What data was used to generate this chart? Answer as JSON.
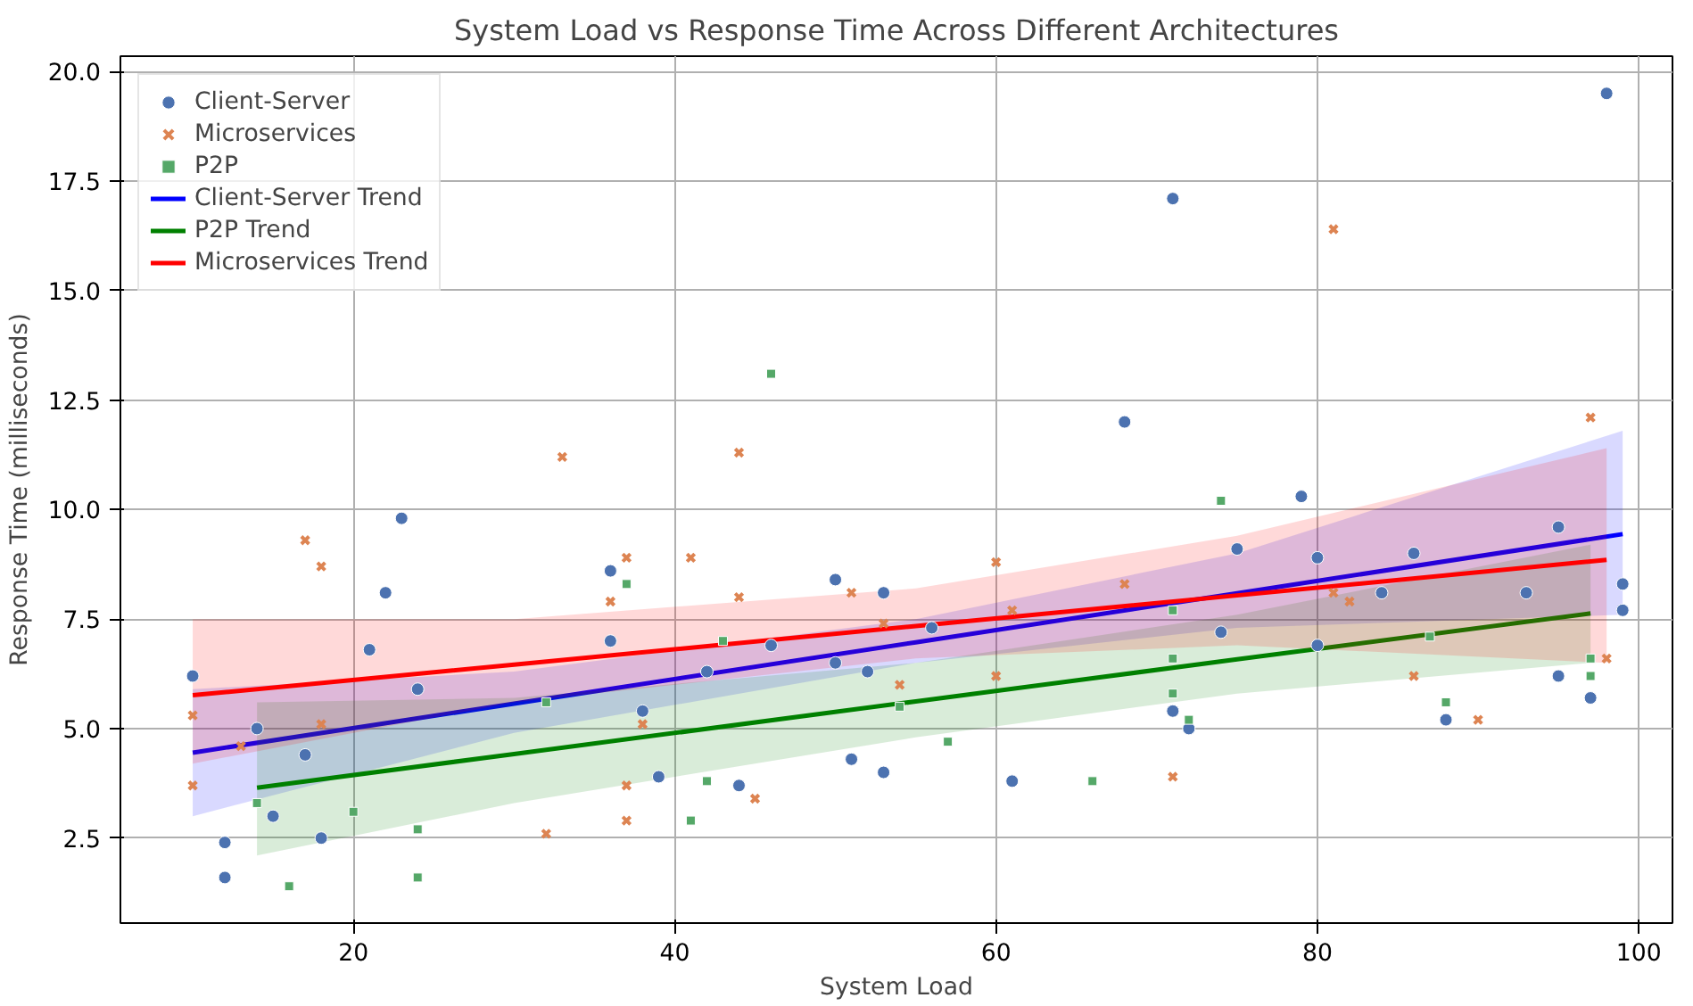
{
  "chart_data": {
    "type": "scatter",
    "title": "System Load vs Response Time Across Different Architectures",
    "xlabel": "System Load",
    "ylabel": "Response Time (milliseconds)",
    "xlim": [
      5.5,
      102.1
    ],
    "ylim": [
      0.56,
      20.35
    ],
    "xticks": [
      20,
      40,
      60,
      80,
      100
    ],
    "yticks": [
      {
        "value": 2.5,
        "label": "2.5"
      },
      {
        "value": 5,
        "label": "5.0"
      },
      {
        "value": 7.5,
        "label": "7.5"
      },
      {
        "value": 10,
        "label": "10.0"
      },
      {
        "value": 12.5,
        "label": "12.5"
      },
      {
        "value": 15,
        "label": "15.0"
      },
      {
        "value": 17.5,
        "label": "17.5"
      },
      {
        "value": 20,
        "label": "20.0"
      }
    ],
    "grid": true,
    "legend": "top left",
    "series": [
      {
        "name": "Client-Server",
        "marker": "circle",
        "color": "#4c72b0",
        "x": [
          10,
          12,
          12,
          14,
          15,
          17,
          18,
          21,
          22,
          23,
          24,
          36,
          36,
          38,
          39,
          42,
          44,
          46,
          50,
          50,
          51,
          52,
          53,
          53,
          56,
          61,
          68,
          71,
          71,
          72,
          74,
          75,
          79,
          80,
          80,
          84,
          86,
          88,
          93,
          95,
          95,
          97,
          98,
          99,
          99
        ],
        "values": [
          6.2,
          2.4,
          1.6,
          5.0,
          3.0,
          4.4,
          2.5,
          6.8,
          8.1,
          9.8,
          5.9,
          8.6,
          7.0,
          5.4,
          3.9,
          6.3,
          3.7,
          6.9,
          8.4,
          6.5,
          4.3,
          6.3,
          8.1,
          4.0,
          7.3,
          3.8,
          12.0,
          17.1,
          5.4,
          5.0,
          7.2,
          9.1,
          10.3,
          8.9,
          6.9,
          8.1,
          9.0,
          5.2,
          8.1,
          9.6,
          6.2,
          5.7,
          19.5,
          8.3,
          7.7
        ]
      },
      {
        "name": "Microservices",
        "marker": "cross",
        "color": "#dd8452",
        "x": [
          10,
          10,
          13,
          17,
          18,
          18,
          32,
          33,
          36,
          37,
          37,
          37,
          38,
          41,
          44,
          44,
          45,
          51,
          53,
          54,
          60,
          60,
          61,
          68,
          71,
          81,
          81,
          82,
          86,
          90,
          97,
          98
        ],
        "values": [
          5.3,
          3.7,
          4.6,
          9.3,
          8.7,
          5.1,
          2.6,
          11.2,
          7.9,
          8.9,
          3.7,
          2.9,
          5.1,
          8.9,
          11.3,
          8.0,
          3.4,
          8.1,
          7.4,
          6.0,
          8.8,
          6.2,
          7.7,
          8.3,
          3.9,
          16.4,
          8.1,
          7.9,
          6.2,
          5.2,
          12.1,
          6.6
        ]
      },
      {
        "name": "P2P",
        "marker": "square",
        "color": "#55a868",
        "x": [
          14,
          16,
          20,
          24,
          24,
          32,
          37,
          41,
          42,
          43,
          46,
          54,
          57,
          66,
          71,
          71,
          71,
          72,
          74,
          87,
          88,
          97,
          97
        ],
        "values": [
          3.3,
          1.4,
          3.1,
          2.7,
          1.6,
          5.6,
          8.3,
          2.9,
          3.8,
          7.0,
          13.1,
          5.5,
          4.7,
          3.8,
          7.7,
          6.6,
          5.8,
          5.2,
          10.2,
          7.1,
          5.6,
          6.6,
          6.2
        ]
      },
      {
        "name": "Client-Server Trend",
        "type": "line",
        "color": "#0000ff",
        "x": [
          10,
          30,
          55,
          75,
          99
        ],
        "values": [
          4.45,
          5.57,
          6.97,
          8.09,
          9.44
        ],
        "lower": [
          3.0,
          4.9,
          6.5,
          7.3,
          7.6
        ],
        "upper": [
          5.9,
          6.3,
          7.5,
          9.0,
          11.8
        ]
      },
      {
        "name": "P2P Trend",
        "type": "line",
        "color": "#008000",
        "x": [
          14,
          30,
          55,
          75,
          97
        ],
        "values": [
          3.65,
          4.42,
          5.62,
          6.58,
          7.63
        ],
        "lower": [
          2.1,
          3.3,
          4.8,
          5.8,
          6.5
        ],
        "upper": [
          5.6,
          5.7,
          6.5,
          7.6,
          9.2
        ]
      },
      {
        "name": "Microservices Trend",
        "type": "line",
        "color": "#ff0000",
        "x": [
          10,
          30,
          55,
          75,
          98
        ],
        "values": [
          5.76,
          6.46,
          7.34,
          8.04,
          8.85
        ],
        "lower": [
          4.2,
          5.6,
          6.6,
          6.9,
          6.5
        ],
        "upper": [
          7.5,
          7.5,
          8.2,
          9.4,
          11.4
        ]
      }
    ]
  }
}
